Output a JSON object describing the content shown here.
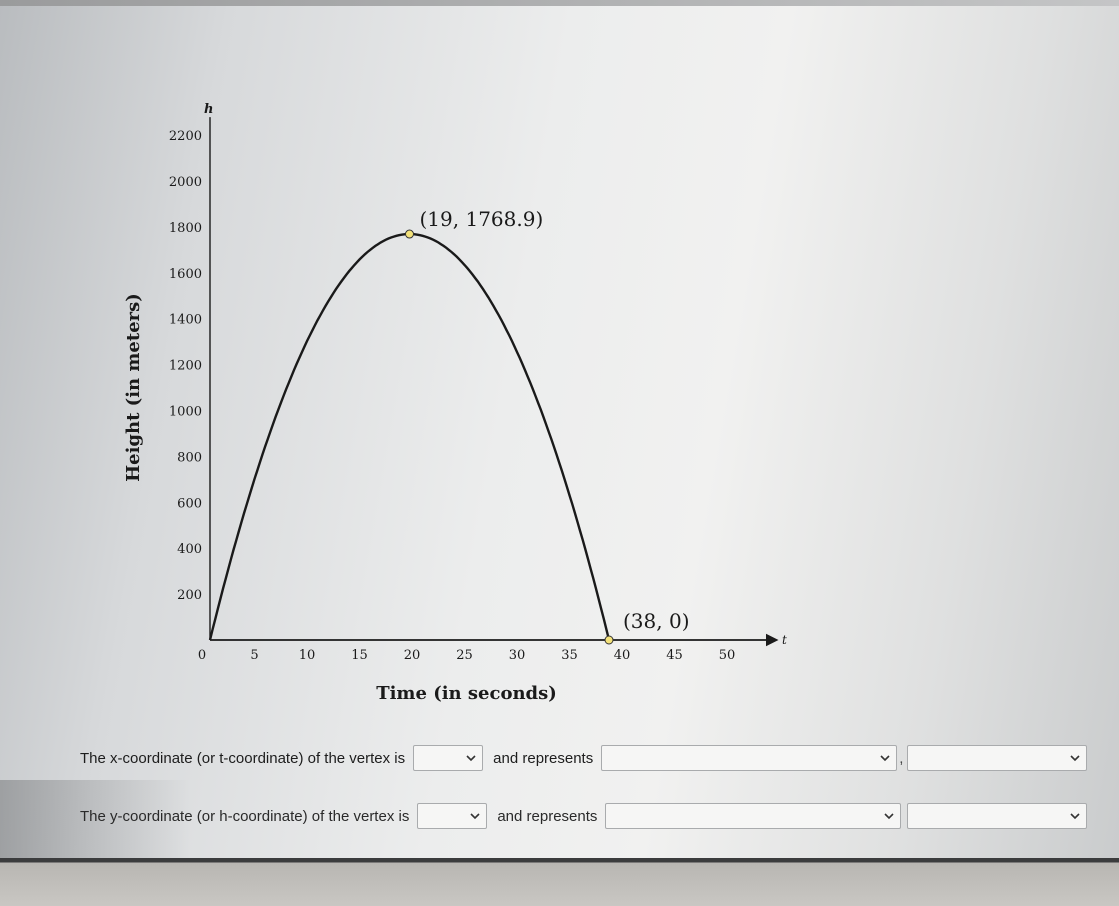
{
  "chart_data": {
    "type": "line",
    "xlabel": "Time (in seconds)",
    "ylabel": "Height (in meters)",
    "x_axis_letter": "t",
    "y_axis_letter": "h",
    "xlim": [
      0,
      52
    ],
    "ylim": [
      0,
      2200
    ],
    "x_ticks": [
      0,
      5,
      10,
      15,
      20,
      25,
      30,
      35,
      40,
      45,
      50
    ],
    "x_tick_labels": [
      "0",
      "5",
      "10",
      "15",
      "20",
      "25",
      "30",
      "35",
      "40",
      "45",
      "50"
    ],
    "y_ticks": [
      200,
      400,
      600,
      800,
      1000,
      1200,
      1400,
      1600,
      1800,
      2000,
      2200
    ],
    "y_tick_labels": [
      "200",
      "400",
      "600",
      "800",
      "1000",
      "1200",
      "1400",
      "1600",
      "1800",
      "2000",
      "2200"
    ],
    "series": [
      {
        "x": [
          0,
          19,
          38
        ],
        "y": [
          0,
          1768.9,
          0
        ],
        "curve": "parabola"
      }
    ],
    "annotations": [
      {
        "x": 19,
        "y": 1768.9,
        "text": "(19, 1768.9)"
      },
      {
        "x": 38,
        "y": 0,
        "text": "(38, 0)"
      }
    ],
    "colors": {
      "curve": "#1a1a1a",
      "point_fill": "#f4e27a",
      "axis": "#1a1a1a"
    }
  },
  "questions": [
    {
      "prefix": "The x-coordinate (or t-coordinate) of the vertex is",
      "middle": "and represents",
      "separator": ","
    },
    {
      "prefix": "The y-coordinate (or h-coordinate) of the vertex is",
      "middle": "and represents",
      "separator": ""
    }
  ],
  "icons": {
    "dropdown": "chevron-down-icon"
  }
}
